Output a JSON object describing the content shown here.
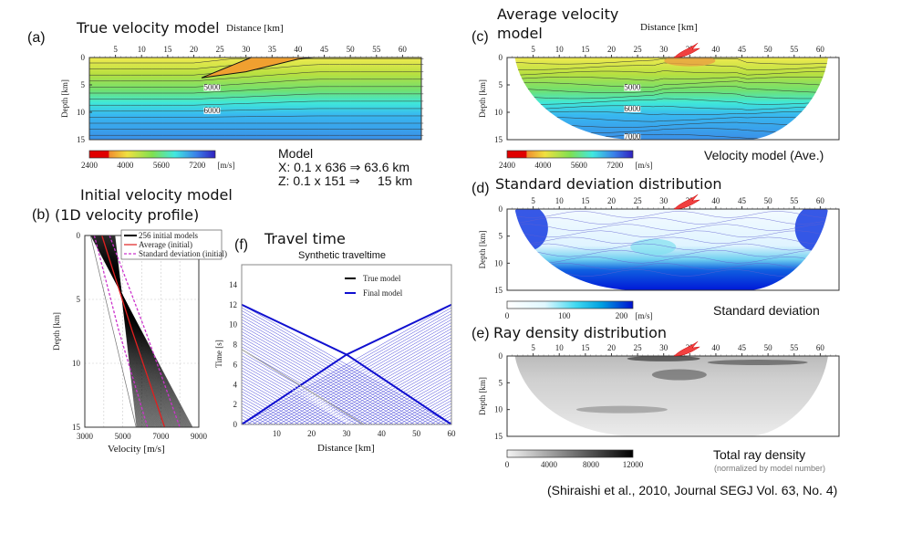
{
  "panels": {
    "a": {
      "letter": "(a)",
      "title": "True velocity model",
      "xlabel": "Distance [km]",
      "ylabel": "Depth [km]",
      "colorbar_ticks": [
        "2400",
        "4000",
        "5600",
        "7200"
      ],
      "colorbar_unit": "[m/s]",
      "contour_labels": [
        "5000",
        "6000"
      ],
      "model_title": "Model",
      "model_x": "X: 0.1 x 636 ⇒ 63.6 km",
      "model_z": "Z: 0.1 x 151 ⇒     15 km"
    },
    "b": {
      "letter": "(b)",
      "title_line1": "Initial velocity model",
      "title_line2": "(1D velocity profile)",
      "xlabel": "Velocity [m/s]",
      "ylabel": "Depth [km]",
      "legend": [
        "256 initial models",
        "Average (initial)",
        "Standard deviation (initial)"
      ]
    },
    "c": {
      "letter": "(c)",
      "title_line1": "Average velocity",
      "title_line2": "model",
      "xlabel": "Distance [km]",
      "ylabel": "Depth [km]",
      "colorbar_ticks": [
        "2400",
        "4000",
        "5600",
        "7200"
      ],
      "colorbar_unit": "[m/s]",
      "contour_labels": [
        "5000",
        "6000",
        "7000"
      ],
      "caption": "Velocity model (Ave.)"
    },
    "d": {
      "letter": "(d)",
      "title": "Standard deviation distribution",
      "ylabel": "Depth [km]",
      "colorbar_ticks": [
        "0",
        "100",
        "200"
      ],
      "colorbar_unit": "[m/s]",
      "caption": "Standard deviation"
    },
    "e": {
      "letter": "(e)",
      "title": "Ray density distribution",
      "ylabel": "Depth [km]",
      "colorbar_ticks": [
        "0",
        "4000",
        "8000",
        "12000"
      ],
      "caption": "Total ray density",
      "caption_sub": "(normalized by model number)"
    },
    "f": {
      "letter": "(f)",
      "title": "Travel time",
      "plot_title": "Synthetic traveltime",
      "xlabel": "Distance [km]",
      "ylabel": "Time [s]",
      "legend": [
        "True model",
        "Final model"
      ]
    }
  },
  "citation": "(Shiraishi et al., 2010, Journal SEGJ Vol. 63, No. 4)",
  "colors": {
    "true_model": "#000000",
    "final_model": "#1010d0",
    "average": "#e02020",
    "stddev": "#cc33cc",
    "models": "#000000"
  },
  "chart_data": [
    {
      "id": "a",
      "type": "heatmap",
      "xlim": [
        0,
        63.6
      ],
      "ylim": [
        15,
        0
      ],
      "xticks": [
        "5",
        "10",
        "15",
        "20",
        "25",
        "30",
        "35",
        "40",
        "45",
        "50",
        "55",
        "60"
      ],
      "yticks": [
        "0",
        "5",
        "10",
        "15"
      ],
      "colorbar_range": [
        2400,
        8000
      ]
    },
    {
      "id": "b",
      "type": "line",
      "xlim": [
        3000,
        9000
      ],
      "ylim": [
        15,
        0
      ],
      "xticks": [
        "3000",
        "5000",
        "7000",
        "9000"
      ],
      "yticks": [
        "0",
        "5",
        "10",
        "15"
      ],
      "grid": true,
      "series": [
        {
          "name": "Average (initial)",
          "x": [
            3900,
            5500,
            7200
          ],
          "y": [
            0,
            7.5,
            15
          ]
        },
        {
          "name": "Standard deviation (initial)",
          "x": [
            3500,
            4800,
            6300
          ],
          "y": [
            0,
            7.5,
            15
          ]
        },
        {
          "name": "Standard deviation (initial)",
          "x": [
            4300,
            6200,
            8000
          ],
          "y": [
            0,
            7.5,
            15
          ]
        }
      ],
      "models_range": {
        "top": [
          3300,
          4600
        ],
        "bottom": [
          5700,
          8700
        ]
      }
    },
    {
      "id": "c",
      "type": "heatmap",
      "xlim": [
        0,
        63.6
      ],
      "ylim": [
        15,
        0
      ],
      "xticks": [
        "5",
        "10",
        "15",
        "20",
        "25",
        "30",
        "35",
        "40",
        "45",
        "50",
        "55",
        "60"
      ],
      "yticks": [
        "0",
        "5",
        "10",
        "15"
      ]
    },
    {
      "id": "d",
      "type": "heatmap",
      "xlim": [
        0,
        63.6
      ],
      "ylim": [
        15,
        0
      ],
      "xticks": [
        "5",
        "10",
        "15",
        "20",
        "25",
        "30",
        "35",
        "40",
        "45",
        "50",
        "55",
        "60"
      ],
      "yticks": [
        "0",
        "5",
        "10",
        "15"
      ],
      "colorbar_range": [
        0,
        220
      ]
    },
    {
      "id": "e",
      "type": "heatmap",
      "xlim": [
        0,
        63.6
      ],
      "ylim": [
        15,
        0
      ],
      "xticks": [
        "5",
        "10",
        "15",
        "20",
        "25",
        "30",
        "35",
        "40",
        "45",
        "50",
        "55",
        "60"
      ],
      "yticks": [
        "0",
        "5",
        "10",
        "15"
      ],
      "colorbar_range": [
        0,
        12000
      ]
    },
    {
      "id": "f",
      "type": "line",
      "title": "Synthetic traveltime",
      "xlim": [
        0,
        60
      ],
      "ylim": [
        0,
        16
      ],
      "xticks": [
        "10",
        "20",
        "30",
        "40",
        "50",
        "60"
      ],
      "yticks": [
        "0",
        "2",
        "4",
        "6",
        "8",
        "10",
        "12",
        "14"
      ],
      "series": [
        {
          "name": "Final model",
          "x": [
            0,
            30,
            60
          ],
          "y": [
            12,
            7,
            0
          ]
        },
        {
          "name": "Final model",
          "x": [
            0,
            30,
            60
          ],
          "y": [
            0,
            7,
            12
          ]
        },
        {
          "name": "True model",
          "x": [
            0,
            35
          ],
          "y": [
            7.5,
            0
          ]
        }
      ]
    }
  ]
}
